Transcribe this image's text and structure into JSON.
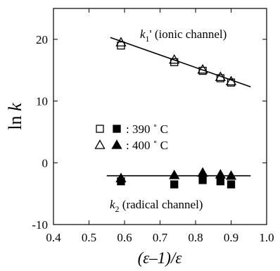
{
  "chart_data": {
    "type": "scatter",
    "xlabel": "(ε–1)/ε",
    "ylabel": "ln k",
    "xlim": [
      0.4,
      1.0
    ],
    "ylim": [
      -10,
      25
    ],
    "xticks": [
      0.4,
      0.5,
      0.6,
      0.7,
      0.8,
      0.9,
      1.0
    ],
    "xtick_labels": [
      "0.4",
      "0.5",
      "0.6",
      "0.7",
      "0.8",
      "0.9",
      "1.0"
    ],
    "yticks": [
      -10,
      0,
      10,
      20
    ],
    "ytick_labels": [
      "-10",
      "0",
      "10",
      "20"
    ],
    "grid": false,
    "legend": {
      "placement": "center-left",
      "entries": [
        {
          "label": ": 390 ˚ C",
          "open_marker": "square",
          "filled_marker": "square"
        },
        {
          "label": ": 400 ˚ C",
          "open_marker": "triangle",
          "filled_marker": "triangle"
        }
      ]
    },
    "annotations": [
      {
        "text": "k1' (ionic channel)",
        "near": "upper fit line"
      },
      {
        "text": "k2 (radical channel)",
        "near": "lower fit line"
      }
    ],
    "series": [
      {
        "name": "k1' 390 ˚ C",
        "marker": "square",
        "fill": "open",
        "x": [
          0.59,
          0.74,
          0.82,
          0.87,
          0.9
        ],
        "y": [
          19.0,
          16.3,
          14.9,
          13.7,
          13.0
        ]
      },
      {
        "name": "k1' 400 ˚ C",
        "marker": "triangle",
        "fill": "open",
        "x": [
          0.59,
          0.74,
          0.82,
          0.87,
          0.9
        ],
        "y": [
          19.5,
          16.7,
          15.1,
          13.9,
          13.2
        ]
      },
      {
        "name": "k2 390 ˚ C",
        "marker": "square",
        "fill": "filled",
        "x": [
          0.59,
          0.74,
          0.82,
          0.87,
          0.9
        ],
        "y": [
          -3.0,
          -3.5,
          -2.8,
          -3.0,
          -3.5
        ]
      },
      {
        "name": "k2 400 ˚ C",
        "marker": "triangle",
        "fill": "filled",
        "x": [
          0.59,
          0.74,
          0.82,
          0.87,
          0.9
        ],
        "y": [
          -2.5,
          -2.0,
          -1.6,
          -1.9,
          -2.1
        ]
      }
    ],
    "fit_lines": [
      {
        "x": [
          0.56,
          0.955
        ],
        "y": [
          20.3,
          12.3
        ]
      },
      {
        "x": [
          0.55,
          0.955
        ],
        "y": [
          -2.1,
          -2.1
        ]
      }
    ]
  }
}
